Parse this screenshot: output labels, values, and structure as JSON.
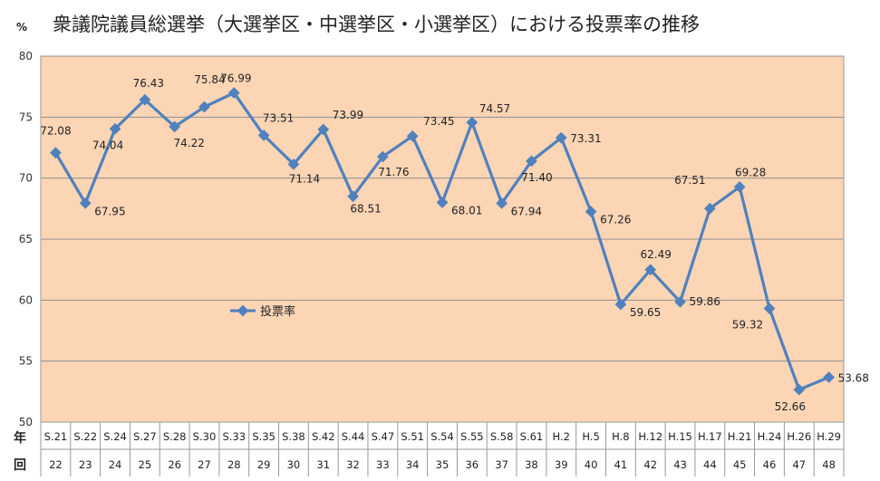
{
  "chart_data": {
    "type": "line",
    "title": "衆議院議員総選挙（大選挙区・中選挙区・小選挙区）における投票率の推移",
    "unit": "%",
    "row_labels": {
      "year": "年",
      "round": "回"
    },
    "categories": [
      "S.21",
      "S.22",
      "S.24",
      "S.27",
      "S.28",
      "S.30",
      "S.33",
      "S.35",
      "S.38",
      "S.42",
      "S.44",
      "S.47",
      "S.51",
      "S.54",
      "S.55",
      "S.58",
      "S.61",
      "H.2",
      "H.5",
      "H.8",
      "H.12",
      "H.15",
      "H.17",
      "H.21",
      "H.24",
      "H.26",
      "H.29"
    ],
    "rounds": [
      "22",
      "23",
      "24",
      "25",
      "26",
      "27",
      "28",
      "29",
      "30",
      "31",
      "32",
      "33",
      "34",
      "35",
      "36",
      "37",
      "38",
      "39",
      "40",
      "41",
      "42",
      "43",
      "44",
      "45",
      "46",
      "47",
      "48"
    ],
    "series": [
      {
        "name": "投票率",
        "color": "#4f81bd",
        "values": [
          72.08,
          67.95,
          74.04,
          76.43,
          74.22,
          75.84,
          76.99,
          73.51,
          71.14,
          73.99,
          68.51,
          71.76,
          73.45,
          68.01,
          74.57,
          67.94,
          71.4,
          73.31,
          67.26,
          59.65,
          62.49,
          59.86,
          67.51,
          69.28,
          59.32,
          52.66,
          53.68
        ],
        "value_labels": [
          "72.08",
          "67.95",
          "74.04",
          "76.43",
          "74.22",
          "75.84",
          "76.99",
          "73.51",
          "71.14",
          "73.99",
          "68.51",
          "71.76",
          "73.45",
          "68.01",
          "74.57",
          "67.94",
          "71.40",
          "73.31",
          "67.26",
          "59.65",
          "62.49",
          "59.86",
          "67.51",
          "69.28",
          "59.32",
          "52.66",
          "53.68"
        ]
      }
    ],
    "y_ticks": [
      "50",
      "55",
      "60",
      "65",
      "70",
      "75",
      "80"
    ],
    "ylim": [
      50,
      80
    ],
    "grid": true,
    "legend_position": "center-left",
    "plot_background": "#fcd5b5"
  }
}
